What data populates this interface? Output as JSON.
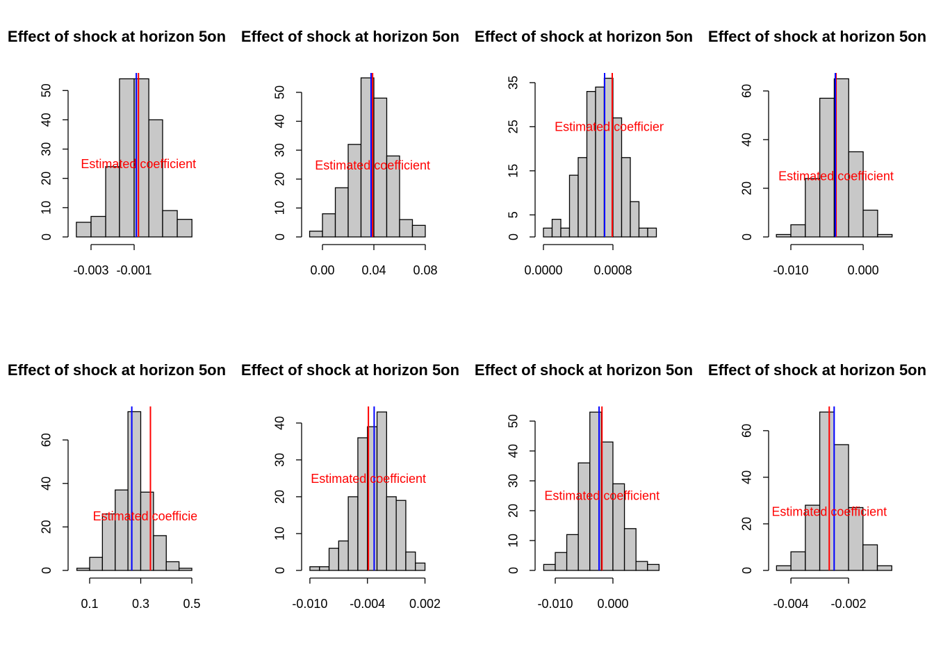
{
  "chart_data": [
    {
      "type": "histogram",
      "title": "Effect of shock at horizon 5on",
      "bins": [
        -0.00368,
        -0.003,
        -0.00232,
        -0.00168,
        -0.001,
        -0.00032,
        0.00032,
        0.001,
        0.00168
      ],
      "values": [
        5,
        7,
        24,
        54,
        54,
        40,
        9,
        6
      ],
      "color": "#c8c8c8",
      "xlim": [
        -0.00387,
        0.0019
      ],
      "ylim": [
        0,
        56
      ],
      "xticks": [
        -0.003,
        -0.001
      ],
      "yticks": [
        0,
        10,
        20,
        30,
        40,
        50
      ],
      "vlines": [
        {
          "color": "#ff0000",
          "value": -0.0008
        },
        {
          "color": "#0000ff",
          "value": -0.0009
        }
      ],
      "annotation": {
        "text": "Estimated coefficient",
        "y": 24.6
      }
    },
    {
      "type": "histogram",
      "title": "Effect of shock at horizon 5on",
      "bins": [
        -0.01,
        0,
        0.01,
        0.02,
        0.03,
        0.04,
        0.05,
        0.06,
        0.07,
        0.08
      ],
      "values": [
        2,
        8,
        17,
        32,
        55,
        48,
        28,
        6,
        4
      ],
      "color": "#c8c8c8",
      "xlim": [
        -0.013,
        0.0838
      ],
      "ylim": [
        0,
        56.7
      ],
      "xticks": [
        {
          "value": 0,
          "label": "0.00"
        },
        0.04,
        0.08
      ],
      "yticks": [
        0,
        10,
        20,
        30,
        40,
        50
      ],
      "vlines": [
        {
          "color": "#ff0000",
          "value": 0.039
        },
        {
          "color": "#0000ff",
          "value": 0.0378
        }
      ],
      "annotation": {
        "text": "Estimated coefficient",
        "y": 24.5
      }
    },
    {
      "type": "histogram",
      "title": "Effect of shock at horizon 5on",
      "bins": [
        0,
        0.0001,
        0.0002,
        0.0003,
        0.0004,
        0.0005,
        0.0006,
        0.0007,
        0.0008,
        0.0009,
        0.001,
        0.0011,
        0.0012,
        0.0013
      ],
      "values": [
        2,
        4,
        2,
        14,
        18,
        33,
        34,
        36,
        27,
        18,
        8,
        2,
        2
      ],
      "color": "#c8c8c8",
      "xlim": [
        -4.8e-05,
        0.001384
      ],
      "ylim": [
        0,
        37.2
      ],
      "xticks": [
        {
          "value": 0,
          "label": "0.0000"
        },
        0.0008
      ],
      "yticks": [
        0,
        5,
        15,
        25,
        35
      ],
      "vlines": [
        {
          "color": "#ff0000",
          "value": 0.000792
        },
        {
          "color": "#0000ff",
          "value": 0.000704
        }
      ],
      "annotation": {
        "text": "Estimated coefficient",
        "y": 24.8
      }
    },
    {
      "type": "histogram",
      "title": "Effect of shock at horizon 5on",
      "bins": [
        -0.012,
        -0.01,
        -0.008,
        -0.006,
        -0.004,
        -0.002,
        0,
        0.002,
        0.004
      ],
      "values": [
        1,
        5,
        24,
        57,
        65,
        35,
        11,
        1
      ],
      "color": "#c8c8c8",
      "xlim": [
        -0.0125,
        0.0047
      ],
      "ylim": [
        0,
        67.4
      ],
      "xticks": [
        {
          "value": -0.01,
          "label": "-0.010"
        },
        {
          "value": 0,
          "label": "0.000"
        }
      ],
      "yticks": [
        0,
        20,
        40,
        60
      ],
      "vlines": [
        {
          "color": "#ff0000",
          "value": -0.00375
        },
        {
          "color": "#0000ff",
          "value": -0.00385
        }
      ],
      "annotation": {
        "text": "Estimated coefficient",
        "y": 24.6
      }
    },
    {
      "type": "histogram",
      "title": "Effect of shock at horizon 5on",
      "bins": [
        0.05,
        0.1,
        0.15,
        0.2,
        0.25,
        0.3,
        0.35,
        0.4,
        0.45,
        0.5
      ],
      "values": [
        1,
        6,
        26,
        37,
        73,
        36,
        16,
        4,
        1
      ],
      "color": "#c8c8c8",
      "xlim": [
        0.032,
        0.519
      ],
      "ylim": [
        0,
        75.4
      ],
      "xticks": [
        0.1,
        0.3,
        0.5
      ],
      "yticks": [
        0,
        20,
        40,
        60
      ],
      "vlines": [
        {
          "color": "#ff0000",
          "value": 0.338
        },
        {
          "color": "#0000ff",
          "value": 0.265
        }
      ],
      "annotation": {
        "text": "Estimated coefficient",
        "y": 24.6
      }
    },
    {
      "type": "histogram",
      "title": "Effect of shock at horizon 5on",
      "bins": [
        -0.01,
        -0.009,
        -0.008,
        -0.007,
        -0.006,
        -0.005,
        -0.004,
        -0.003,
        -0.002,
        -0.001,
        0,
        0.001,
        0.002
      ],
      "values": [
        1,
        1,
        6,
        8,
        20,
        36,
        39,
        43,
        20,
        19,
        5,
        2
      ],
      "color": "#c8c8c8",
      "xlim": [
        -0.01043,
        0.00254
      ],
      "ylim": [
        0,
        44.5
      ],
      "xticks": [
        {
          "value": -0.01,
          "label": "-0.010"
        },
        -0.004,
        0.002
      ],
      "yticks": [
        0,
        10,
        20,
        30,
        40
      ],
      "vlines": [
        {
          "color": "#ff0000",
          "value": -0.0039
        },
        {
          "color": "#0000ff",
          "value": -0.0033
        }
      ],
      "annotation": {
        "text": "Estimated coefficient",
        "y": 24.7
      }
    },
    {
      "type": "histogram",
      "title": "Effect of shock at horizon 5on",
      "bins": [
        -0.012,
        -0.01,
        -0.008,
        -0.006,
        -0.004,
        -0.002,
        0,
        0.002,
        0.004,
        0.006,
        0.008
      ],
      "values": [
        2,
        6,
        12,
        36,
        53,
        43,
        29,
        14,
        3,
        2
      ],
      "color": "#c8c8c8",
      "xlim": [
        -0.01277,
        0.0088
      ],
      "ylim": [
        0,
        54.9
      ],
      "xticks": [
        {
          "value": -0.01,
          "label": "-0.010"
        },
        {
          "value": 0,
          "label": "0.000"
        }
      ],
      "yticks": [
        0,
        10,
        20,
        30,
        40,
        50
      ],
      "vlines": [
        {
          "color": "#ff0000",
          "value": -0.0019
        },
        {
          "color": "#0000ff",
          "value": -0.0024
        }
      ],
      "annotation": {
        "text": "Estimated coefficient",
        "y": 24.7
      }
    },
    {
      "type": "histogram",
      "title": "Effect of shock at horizon 5on",
      "bins": [
        -0.0045,
        -0.004,
        -0.0035,
        -0.003,
        -0.0025,
        -0.002,
        -0.0015,
        -0.001,
        -0.0005
      ],
      "values": [
        2,
        8,
        28,
        68,
        54,
        27,
        11,
        2
      ],
      "color": "#c8c8c8",
      "xlim": [
        -0.00463,
        -0.000313
      ],
      "ylim": [
        0,
        70.4
      ],
      "xticks": [
        -0.004,
        -0.002
      ],
      "yticks": [
        0,
        20,
        40,
        60
      ],
      "vlines": [
        {
          "color": "#ff0000",
          "value": -0.00267
        },
        {
          "color": "#0000ff",
          "value": -0.0025
        }
      ],
      "annotation": {
        "text": "Estimated coefficient",
        "y": 24.8
      }
    }
  ]
}
